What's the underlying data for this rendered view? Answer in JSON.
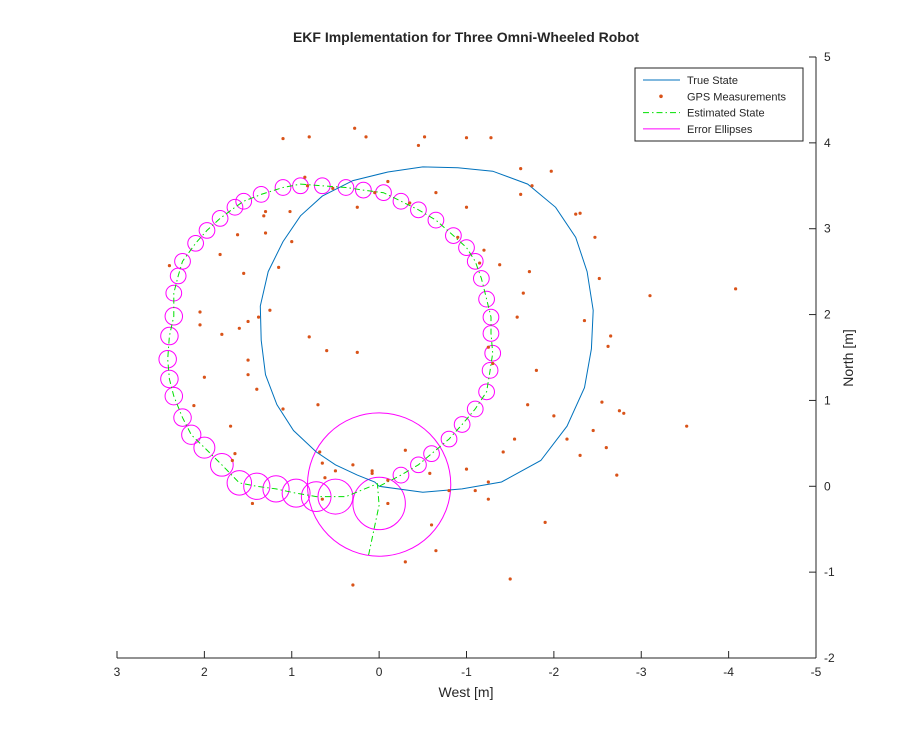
{
  "chart_data": {
    "type": "scatter",
    "title": "EKF Implementation for Three Omni-Wheeled Robot",
    "xlabel": "West [m]",
    "ylabel": "North [m]",
    "xlim": [
      3,
      -5
    ],
    "ylim": [
      -2,
      5
    ],
    "x_reversed": true,
    "y_axis_side": "right",
    "grid": false,
    "legend_position": "top-right",
    "x_ticks": [
      3,
      2,
      1,
      0,
      -1,
      -2,
      -3,
      -4,
      -5
    ],
    "y_ticks": [
      -2,
      -1,
      0,
      1,
      2,
      3,
      4,
      5
    ],
    "x_tick_labels": [
      "3",
      "2",
      "1",
      "0",
      "-1",
      "-2",
      "-3",
      "-4",
      "-5"
    ],
    "y_tick_labels": [
      "-2",
      "-1",
      "0",
      "1",
      "2",
      "3",
      "4",
      "5"
    ],
    "colors": {
      "true_state": "#0072BD",
      "gps": "#D95319",
      "estimated": "#00E000",
      "ellipses": "#FF00FF",
      "axis": "#262626"
    },
    "legend": [
      {
        "label": "True State",
        "style": "line"
      },
      {
        "label": "GPS Measurements",
        "style": "dot"
      },
      {
        "label": "Estimated State",
        "style": "dashdot"
      },
      {
        "label": "Error Ellipses",
        "style": "line"
      }
    ],
    "series": [
      {
        "name": "True State",
        "type": "line",
        "points": [
          [
            0,
            0
          ],
          [
            -0.5,
            -0.07
          ],
          [
            -0.95,
            -0.03
          ],
          [
            -1.4,
            0.05
          ],
          [
            -1.85,
            0.3
          ],
          [
            -2.15,
            0.7
          ],
          [
            -2.35,
            1.15
          ],
          [
            -2.43,
            1.6
          ],
          [
            -2.45,
            2.05
          ],
          [
            -2.38,
            2.5
          ],
          [
            -2.25,
            2.9
          ],
          [
            -2.02,
            3.25
          ],
          [
            -1.7,
            3.52
          ],
          [
            -1.3,
            3.67
          ],
          [
            -0.9,
            3.71
          ],
          [
            -0.5,
            3.72
          ],
          [
            -0.1,
            3.66
          ],
          [
            0.3,
            3.56
          ],
          [
            0.65,
            3.38
          ],
          [
            0.9,
            3.15
          ],
          [
            1.1,
            2.85
          ],
          [
            1.27,
            2.5
          ],
          [
            1.36,
            2.1
          ],
          [
            1.35,
            1.7
          ],
          [
            1.3,
            1.3
          ],
          [
            1.17,
            0.95
          ],
          [
            0.98,
            0.65
          ],
          [
            0.72,
            0.4
          ],
          [
            0.5,
            0.25
          ],
          [
            0.25,
            0.13
          ],
          [
            0.05,
            0.05
          ],
          [
            0,
            0
          ]
        ]
      },
      {
        "name": "GPS Measurements",
        "type": "scatter",
        "points": [
          [
            1.1,
            4.05
          ],
          [
            0.8,
            4.07
          ],
          [
            0.28,
            4.17
          ],
          [
            0.15,
            4.07
          ],
          [
            -0.45,
            3.97
          ],
          [
            -0.52,
            4.07
          ],
          [
            -1.0,
            4.06
          ],
          [
            -1.28,
            4.06
          ],
          [
            0.85,
            3.6
          ],
          [
            0.82,
            3.5
          ],
          [
            0.53,
            3.47
          ],
          [
            0.25,
            3.25
          ],
          [
            0.05,
            3.42
          ],
          [
            -0.1,
            3.55
          ],
          [
            -0.35,
            3.3
          ],
          [
            -0.65,
            3.42
          ],
          [
            -1.0,
            3.25
          ],
          [
            -0.9,
            2.9
          ],
          [
            -1.2,
            2.75
          ],
          [
            -1.15,
            2.6
          ],
          [
            -1.38,
            2.58
          ],
          [
            -1.62,
            3.4
          ],
          [
            -1.62,
            3.7
          ],
          [
            -1.75,
            3.5
          ],
          [
            -1.97,
            3.67
          ],
          [
            -2.3,
            3.18
          ],
          [
            -2.25,
            3.17
          ],
          [
            -2.47,
            2.9
          ],
          [
            -2.52,
            2.42
          ],
          [
            -1.65,
            2.25
          ],
          [
            -1.72,
            2.5
          ],
          [
            1.02,
            3.2
          ],
          [
            1.3,
            3.2
          ],
          [
            1.32,
            3.15
          ],
          [
            1.62,
            2.93
          ],
          [
            1.3,
            2.95
          ],
          [
            1.0,
            2.85
          ],
          [
            1.82,
            2.7
          ],
          [
            1.55,
            2.48
          ],
          [
            1.15,
            2.55
          ],
          [
            2.4,
            2.57
          ],
          [
            2.05,
            2.03
          ],
          [
            2.05,
            1.88
          ],
          [
            1.6,
            1.84
          ],
          [
            1.5,
            1.92
          ],
          [
            1.38,
            1.97
          ],
          [
            1.25,
            2.05
          ],
          [
            1.5,
            1.47
          ],
          [
            1.8,
            1.77
          ],
          [
            0.8,
            1.74
          ],
          [
            0.6,
            1.58
          ],
          [
            0.25,
            1.56
          ],
          [
            -1.58,
            1.97
          ],
          [
            -2.35,
            1.93
          ],
          [
            -2.65,
            1.75
          ],
          [
            -2.62,
            1.63
          ],
          [
            -3.1,
            2.22
          ],
          [
            -4.08,
            2.3
          ],
          [
            2.0,
            1.27
          ],
          [
            1.5,
            1.3
          ],
          [
            1.4,
            1.13
          ],
          [
            2.12,
            0.94
          ],
          [
            1.7,
            0.7
          ],
          [
            1.65,
            0.38
          ],
          [
            1.68,
            0.3
          ],
          [
            1.45,
            -0.2
          ],
          [
            1.1,
            0.9
          ],
          [
            0.7,
            0.95
          ],
          [
            0.68,
            0.4
          ],
          [
            0.65,
            0.27
          ],
          [
            0.62,
            0.1
          ],
          [
            0.5,
            0.18
          ],
          [
            0.3,
            0.25
          ],
          [
            0.65,
            -0.15
          ],
          [
            0.08,
            0.18
          ],
          [
            0.08,
            0.15
          ],
          [
            -0.1,
            0.07
          ],
          [
            -0.1,
            -0.2
          ],
          [
            -0.3,
            0.42
          ],
          [
            -0.58,
            0.15
          ],
          [
            -0.65,
            -0.75
          ],
          [
            -0.6,
            -0.45
          ],
          [
            -0.8,
            -0.05
          ],
          [
            -1.0,
            0.2
          ],
          [
            -1.1,
            -0.05
          ],
          [
            -1.25,
            0.05
          ],
          [
            -1.5,
            -1.08
          ],
          [
            -1.7,
            0.95
          ],
          [
            -1.55,
            0.55
          ],
          [
            -1.42,
            0.4
          ],
          [
            -1.25,
            1.62
          ],
          [
            -1.3,
            1.43
          ],
          [
            -1.8,
            1.35
          ],
          [
            -2.0,
            0.82
          ],
          [
            -2.15,
            0.55
          ],
          [
            -2.3,
            0.36
          ],
          [
            -2.45,
            0.65
          ],
          [
            -2.55,
            0.98
          ],
          [
            -2.6,
            0.45
          ],
          [
            -2.72,
            0.13
          ],
          [
            -2.75,
            0.88
          ],
          [
            -2.8,
            0.85
          ],
          [
            -3.52,
            0.7
          ],
          [
            -1.9,
            -0.42
          ],
          [
            0.3,
            -1.15
          ],
          [
            -0.3,
            -0.88
          ],
          [
            -1.25,
            -0.15
          ]
        ]
      },
      {
        "name": "Estimated State",
        "type": "line",
        "points": [
          [
            0.12,
            -0.8
          ],
          [
            0.0,
            -0.22
          ],
          [
            0.02,
            0.03
          ],
          [
            0.38,
            -0.12
          ],
          [
            0.5,
            -0.12
          ],
          [
            0.72,
            -0.12
          ],
          [
            0.95,
            -0.08
          ],
          [
            1.18,
            -0.03
          ],
          [
            1.4,
            0.0
          ],
          [
            1.6,
            0.04
          ],
          [
            1.8,
            0.25
          ],
          [
            2.0,
            0.45
          ],
          [
            2.15,
            0.6
          ],
          [
            2.25,
            0.8
          ],
          [
            2.35,
            1.05
          ],
          [
            2.4,
            1.25
          ],
          [
            2.42,
            1.48
          ],
          [
            2.4,
            1.75
          ],
          [
            2.35,
            1.98
          ],
          [
            2.35,
            2.25
          ],
          [
            2.3,
            2.45
          ],
          [
            2.25,
            2.62
          ],
          [
            2.1,
            2.83
          ],
          [
            1.97,
            2.98
          ],
          [
            1.82,
            3.12
          ],
          [
            1.65,
            3.25
          ],
          [
            1.55,
            3.32
          ],
          [
            1.35,
            3.4
          ],
          [
            1.1,
            3.48
          ],
          [
            0.9,
            3.52
          ],
          [
            0.65,
            3.5
          ],
          [
            0.38,
            3.48
          ],
          [
            0.18,
            3.45
          ],
          [
            -0.05,
            3.42
          ],
          [
            -0.25,
            3.32
          ],
          [
            -0.45,
            3.22
          ],
          [
            -0.65,
            3.1
          ],
          [
            -0.85,
            2.92
          ],
          [
            -1.0,
            2.78
          ],
          [
            -1.1,
            2.62
          ],
          [
            -1.17,
            2.42
          ],
          [
            -1.23,
            2.18
          ],
          [
            -1.28,
            1.97
          ],
          [
            -1.28,
            1.78
          ],
          [
            -1.3,
            1.55
          ],
          [
            -1.27,
            1.35
          ],
          [
            -1.23,
            1.1
          ],
          [
            -1.1,
            0.9
          ],
          [
            -0.95,
            0.72
          ],
          [
            -0.8,
            0.55
          ],
          [
            -0.6,
            0.38
          ],
          [
            -0.45,
            0.25
          ],
          [
            -0.25,
            0.13
          ],
          [
            0.0,
            0.0
          ]
        ]
      },
      {
        "name": "Error Ellipses",
        "type": "ellipses",
        "note": "centre [x, y] and radius r in data units",
        "items": [
          [
            0.0,
            0.02,
            0.82
          ],
          [
            0.0,
            -0.2,
            0.3
          ],
          [
            0.5,
            -0.12,
            0.2
          ],
          [
            0.72,
            -0.12,
            0.17
          ],
          [
            0.95,
            -0.08,
            0.16
          ],
          [
            1.18,
            -0.03,
            0.15
          ],
          [
            1.4,
            0.0,
            0.15
          ],
          [
            1.6,
            0.04,
            0.14
          ],
          [
            1.8,
            0.25,
            0.13
          ],
          [
            2.0,
            0.45,
            0.12
          ],
          [
            2.15,
            0.6,
            0.11
          ],
          [
            2.25,
            0.8,
            0.1
          ],
          [
            2.35,
            1.05,
            0.1
          ],
          [
            2.4,
            1.25,
            0.1
          ],
          [
            2.42,
            1.48,
            0.1
          ],
          [
            2.4,
            1.75,
            0.1
          ],
          [
            2.35,
            1.98,
            0.1
          ],
          [
            2.35,
            2.25,
            0.09
          ],
          [
            2.3,
            2.45,
            0.09
          ],
          [
            2.25,
            2.62,
            0.09
          ],
          [
            2.1,
            2.83,
            0.09
          ],
          [
            1.97,
            2.98,
            0.09
          ],
          [
            1.82,
            3.12,
            0.09
          ],
          [
            1.65,
            3.25,
            0.09
          ],
          [
            1.55,
            3.32,
            0.09
          ],
          [
            1.35,
            3.4,
            0.09
          ],
          [
            1.1,
            3.48,
            0.09
          ],
          [
            0.9,
            3.5,
            0.09
          ],
          [
            0.65,
            3.5,
            0.09
          ],
          [
            0.38,
            3.48,
            0.09
          ],
          [
            0.18,
            3.45,
            0.09
          ],
          [
            -0.05,
            3.42,
            0.09
          ],
          [
            -0.25,
            3.32,
            0.09
          ],
          [
            -0.45,
            3.22,
            0.09
          ],
          [
            -0.65,
            3.1,
            0.09
          ],
          [
            -0.85,
            2.92,
            0.09
          ],
          [
            -1.0,
            2.78,
            0.09
          ],
          [
            -1.1,
            2.62,
            0.09
          ],
          [
            -1.17,
            2.42,
            0.09
          ],
          [
            -1.23,
            2.18,
            0.09
          ],
          [
            -1.28,
            1.97,
            0.09
          ],
          [
            -1.28,
            1.78,
            0.09
          ],
          [
            -1.3,
            1.55,
            0.09
          ],
          [
            -1.27,
            1.35,
            0.09
          ],
          [
            -1.23,
            1.1,
            0.09
          ],
          [
            -1.1,
            0.9,
            0.09
          ],
          [
            -0.95,
            0.72,
            0.09
          ],
          [
            -0.8,
            0.55,
            0.09
          ],
          [
            -0.6,
            0.38,
            0.09
          ],
          [
            -0.45,
            0.25,
            0.09
          ],
          [
            -0.25,
            0.13,
            0.09
          ]
        ]
      }
    ]
  }
}
